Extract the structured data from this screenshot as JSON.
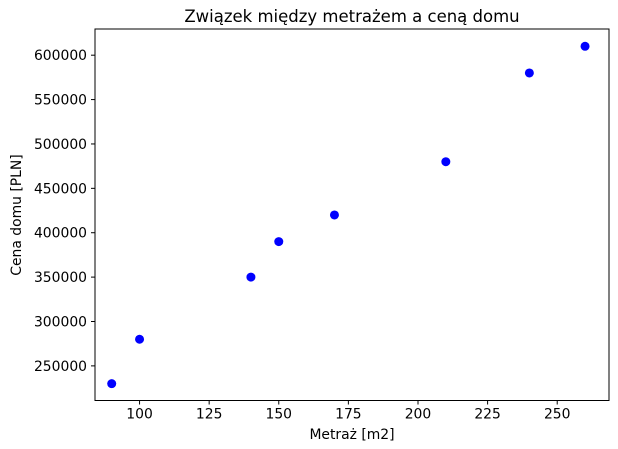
{
  "chart_data": {
    "type": "scatter",
    "title": "Związek między metrażem a ceną domu",
    "xlabel": "Metraż [m2]",
    "ylabel": "Cena domu [PLN]",
    "x": [
      90,
      100,
      140,
      150,
      170,
      210,
      240,
      260
    ],
    "y": [
      230000,
      280000,
      350000,
      390000,
      420000,
      480000,
      580000,
      610000
    ],
    "marker_color": "#0000ff",
    "marker_radius": 4.5,
    "xticks": [
      100,
      125,
      150,
      175,
      200,
      225,
      250
    ],
    "yticks": [
      250000,
      300000,
      350000,
      400000,
      450000,
      500000,
      550000,
      600000
    ],
    "xlim": [
      84.0,
      268.6
    ],
    "ylim": [
      211000,
      629500
    ],
    "grid": false,
    "legend_position": "none",
    "background_color": "#ffffff",
    "spine_color": "#000000"
  }
}
